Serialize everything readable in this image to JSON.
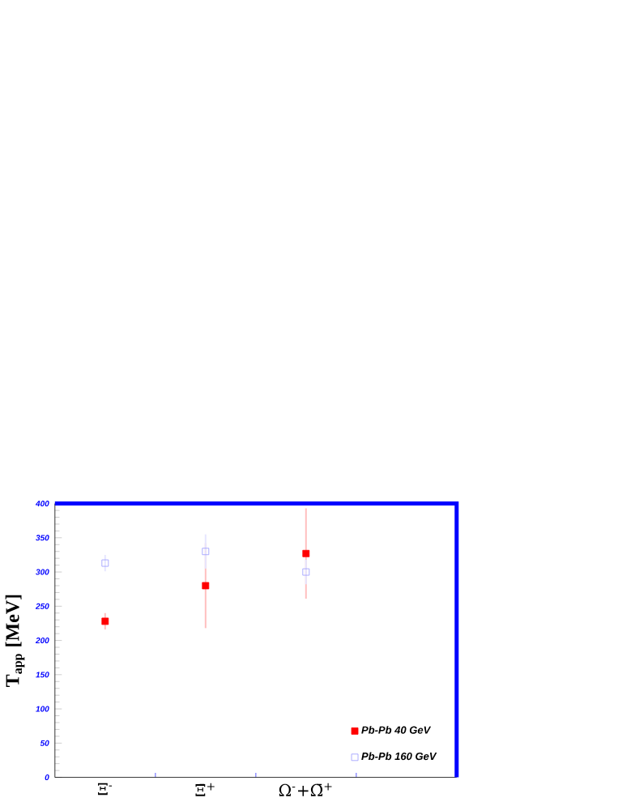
{
  "chart_data": {
    "type": "scatter",
    "ylabel": "T$_{app}$ [MeV]",
    "categories": [
      "Ξ$^{-}$",
      "Ξ̄$^{+}$",
      "Ω$^{-}$+Ω̄$^{+}$"
    ],
    "series": [
      {
        "name": "Pb-Pb  40 GeV",
        "color": "#ff0000",
        "values": [
          228,
          280,
          327
        ],
        "errors": [
          12,
          62,
          66
        ]
      },
      {
        "name": "Pb-Pb 160 GeV",
        "color": "#9999ff",
        "values": [
          313,
          330,
          300
        ],
        "errors": [
          12,
          25,
          18
        ]
      }
    ],
    "ylim": [
      0,
      400
    ],
    "yticks": [
      0,
      50,
      100,
      150,
      200,
      250,
      300,
      350,
      400
    ],
    "marker": "square",
    "legend": "bottom right",
    "grid": false
  }
}
